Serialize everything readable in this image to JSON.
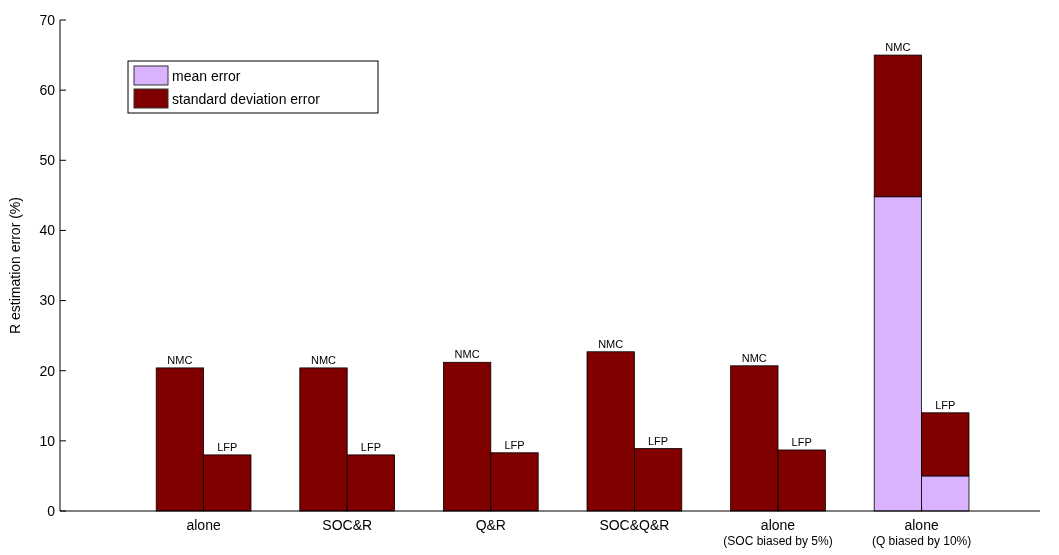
{
  "chart_data": {
    "type": "bar",
    "ylabel": "R estimation error (%)",
    "stacked": true,
    "categories": [
      "NMC",
      "LFP",
      "NMC",
      "LFP",
      "NMC",
      "LFP",
      "NMC",
      "LFP",
      "NMC",
      "LFP",
      "NMC",
      "LFP"
    ],
    "series": [
      {
        "name": "mean error",
        "color": "#dab3ff",
        "values": [
          0,
          0,
          0,
          0,
          0,
          0,
          0,
          0,
          0,
          0,
          44.8,
          5.0
        ]
      },
      {
        "name": "standard deviation error",
        "color": "#800000",
        "values": [
          20.4,
          8.0,
          20.4,
          8.0,
          21.2,
          8.3,
          22.7,
          8.9,
          20.7,
          8.7,
          20.2,
          9.0
        ]
      }
    ],
    "ylim": [
      0,
      70
    ],
    "yticks": [
      0,
      10,
      20,
      30,
      40,
      50,
      60,
      70
    ],
    "legend": "top left",
    "annotations": [
      "alone",
      "SOC&R",
      "Q&R",
      "SOC&Q&R",
      "alone\n(SOC biased by 5%)",
      "alone\n(Q biased by 10%)"
    ]
  }
}
